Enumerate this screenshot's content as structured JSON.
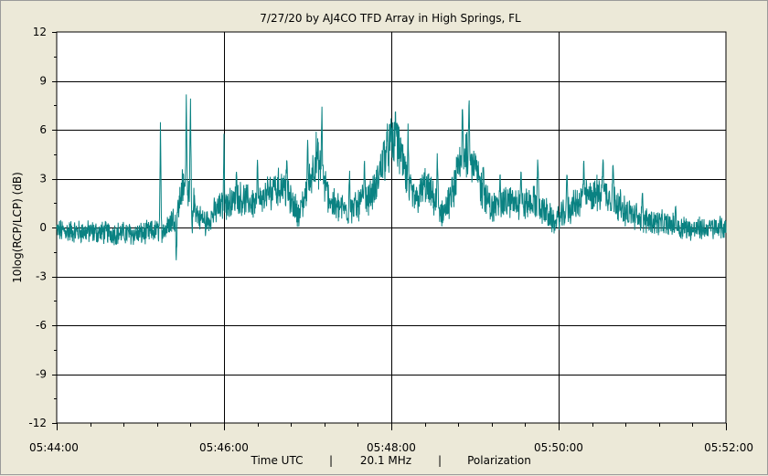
{
  "chart_data": {
    "type": "line",
    "title": "7/27/20  by  AJ4CO TFD Array  in  High Springs, FL",
    "ylabel": "10log(RCP/LCP)  (dB)",
    "xlabel": "Time UTC",
    "footer": {
      "xlabel": "Time UTC",
      "separator": "|",
      "frequency": "20.1 MHz",
      "mode": "Polarization"
    },
    "ylim": [
      -12,
      12
    ],
    "y_ticks": [
      12,
      9,
      6,
      3,
      0,
      -3,
      -6,
      -9,
      -12
    ],
    "y_tick_labels": [
      "12",
      "9",
      "6",
      "3",
      "0",
      "-3",
      "-6",
      "-9",
      "-12"
    ],
    "x_range_minutes": [
      0,
      8
    ],
    "x_ticks_minutes": [
      0,
      2,
      4,
      6,
      8
    ],
    "x_tick_labels": [
      "05:44:00",
      "05:46:00",
      "05:48:00",
      "05:50:00",
      "05:52:00"
    ],
    "grid": true,
    "series": [
      {
        "color": "#0a8282",
        "envelope": [
          [
            0.0,
            -0.2
          ],
          [
            0.5,
            -0.3
          ],
          [
            1.0,
            -0.4
          ],
          [
            1.2,
            -0.2
          ],
          [
            1.3,
            -0.1
          ],
          [
            1.45,
            1.0
          ],
          [
            1.5,
            2.5
          ],
          [
            1.6,
            2.2
          ],
          [
            1.7,
            0.6
          ],
          [
            1.8,
            0.4
          ],
          [
            1.9,
            1.0
          ],
          [
            2.0,
            1.4
          ],
          [
            2.2,
            1.8
          ],
          [
            2.4,
            1.4
          ],
          [
            2.5,
            2.0
          ],
          [
            2.7,
            2.6
          ],
          [
            2.8,
            1.6
          ],
          [
            2.9,
            0.8
          ],
          [
            3.0,
            2.4
          ],
          [
            3.1,
            4.4
          ],
          [
            3.2,
            2.6
          ],
          [
            3.3,
            1.4
          ],
          [
            3.5,
            1.0
          ],
          [
            3.7,
            1.8
          ],
          [
            3.8,
            2.2
          ],
          [
            3.9,
            4.2
          ],
          [
            4.0,
            5.2
          ],
          [
            4.1,
            4.8
          ],
          [
            4.2,
            2.4
          ],
          [
            4.3,
            1.6
          ],
          [
            4.4,
            2.6
          ],
          [
            4.5,
            1.8
          ],
          [
            4.6,
            0.8
          ],
          [
            4.7,
            1.6
          ],
          [
            4.8,
            3.4
          ],
          [
            4.9,
            4.8
          ],
          [
            5.0,
            3.6
          ],
          [
            5.1,
            2.0
          ],
          [
            5.2,
            1.2
          ],
          [
            5.4,
            1.6
          ],
          [
            5.6,
            1.4
          ],
          [
            5.7,
            1.6
          ],
          [
            5.8,
            1.2
          ],
          [
            5.95,
            0.3
          ],
          [
            6.1,
            1.0
          ],
          [
            6.3,
            1.8
          ],
          [
            6.5,
            2.2
          ],
          [
            6.6,
            2.0
          ],
          [
            6.8,
            1.0
          ],
          [
            7.0,
            0.5
          ],
          [
            7.3,
            0.2
          ],
          [
            7.6,
            -0.1
          ],
          [
            8.0,
            0.0
          ]
        ],
        "noise_amplitude_db": 0.9,
        "spikes": [
          [
            1.24,
            7.0
          ],
          [
            1.43,
            -2.9
          ],
          [
            1.55,
            9.5
          ],
          [
            1.6,
            8.2
          ],
          [
            1.62,
            -1.0
          ],
          [
            1.78,
            -0.6
          ],
          [
            2.0,
            5.8
          ],
          [
            2.15,
            4.0
          ],
          [
            2.4,
            4.5
          ],
          [
            2.6,
            3.2
          ],
          [
            2.75,
            4.6
          ],
          [
            3.0,
            5.6
          ],
          [
            3.17,
            8.2
          ],
          [
            3.5,
            4.0
          ],
          [
            3.68,
            4.5
          ],
          [
            4.05,
            7.5
          ],
          [
            4.2,
            6.4
          ],
          [
            4.55,
            5.3
          ],
          [
            4.85,
            8.0
          ],
          [
            4.93,
            8.6
          ],
          [
            5.1,
            4.3
          ],
          [
            5.3,
            3.8
          ],
          [
            5.55,
            4.2
          ],
          [
            5.75,
            5.2
          ],
          [
            6.1,
            4.2
          ],
          [
            6.3,
            4.8
          ],
          [
            6.53,
            5.2
          ],
          [
            6.65,
            4.8
          ],
          [
            7.0,
            2.6
          ],
          [
            7.4,
            1.6
          ]
        ]
      }
    ]
  }
}
